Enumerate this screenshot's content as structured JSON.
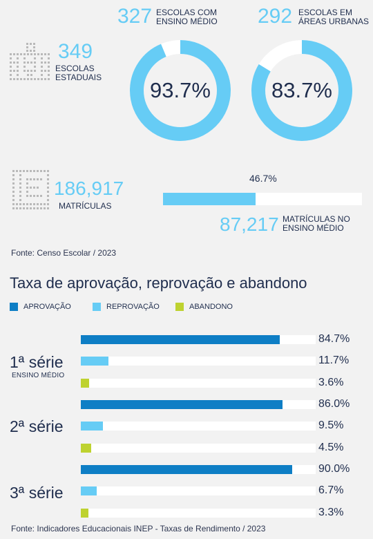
{
  "colors": {
    "aprovacao": "#0e7ec5",
    "reprovacao": "#66ccf5",
    "abandono": "#bed230",
    "accent": "#66ccf5",
    "dark": "#1f2d4d"
  },
  "stats": {
    "schools_number": "349",
    "schools_caption": [
      "ESCOLAS",
      "ESTADUAIS"
    ],
    "hs_number": "327",
    "hs_caption": [
      "ESCOLAS COM",
      "ENSINO MÉDIO"
    ],
    "hs_percent_label": "93.7%",
    "hs_percent": 93.7,
    "urban_number": "292",
    "urban_caption": [
      "ESCOLAS EM",
      "ÁREAS URBANAS"
    ],
    "urban_percent_label": "83.7%",
    "urban_percent": 83.7,
    "enrollment_number": "186,917",
    "enrollment_caption": "MATRÍCULAS",
    "hs_enroll_percent_label": "46.7%",
    "hs_enroll_percent": 46.7,
    "hs_enroll_number": "87,217",
    "hs_enroll_caption": [
      "MATRÍCULAS NO",
      "ENSINO MÉDIO"
    ],
    "source": "Fonte: Censo Escolar / 2023"
  },
  "chart_data": {
    "type": "bar",
    "title": "Taxa de aprovação, reprovação e abandono",
    "legend": [
      "APROVAÇÃO",
      "REPROVAÇÃO",
      "ABANDONO"
    ],
    "categories": [
      "1ª série",
      "2ª série",
      "3ª série"
    ],
    "category_sub": [
      "ENSINO MÉDIO",
      "",
      ""
    ],
    "xlim": [
      0,
      100
    ],
    "series": [
      {
        "name": "APROVAÇÃO",
        "values": [
          84.7,
          86.0,
          90.0
        ],
        "labels": [
          "84.7%",
          "86.0%",
          "90.0%"
        ]
      },
      {
        "name": "REPROVAÇÃO",
        "values": [
          11.7,
          9.5,
          6.7
        ],
        "labels": [
          "11.7%",
          "9.5%",
          "6.7%"
        ]
      },
      {
        "name": "ABANDONO",
        "values": [
          3.6,
          4.5,
          3.3
        ],
        "labels": [
          "3.6%",
          "4.5%",
          "3.3%"
        ]
      }
    ],
    "source": "Fonte: Indicadores Educacionais INEP - Taxas de Rendimento / 2023"
  }
}
